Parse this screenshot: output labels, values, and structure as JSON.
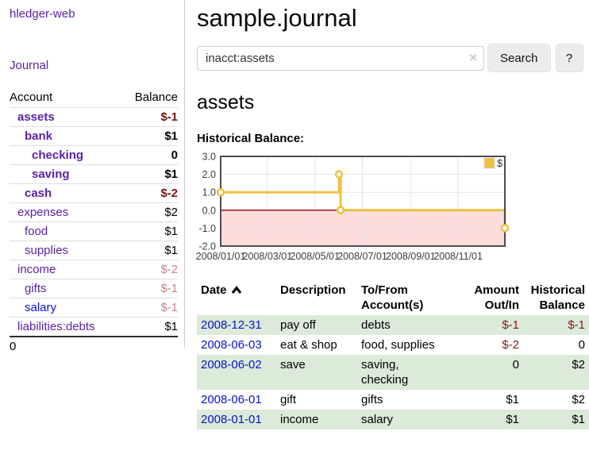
{
  "colors": {
    "accent_purple": "#5b21a6",
    "link_blue": "#0712cf",
    "negative_strong": "#7c1212",
    "negative_muted": "#c08585",
    "negative_table": "#8b1a1a",
    "row_green": "#dcead9"
  },
  "sidebar": {
    "app_title": "hledger-web",
    "journal_link": "Journal",
    "accounts_table": {
      "col_account": "Account",
      "col_balance": "Balance",
      "rows": [
        {
          "account": "assets",
          "level": 1,
          "bold": true,
          "balance": "$-1",
          "balance_class": "neg"
        },
        {
          "account": "bank",
          "level": 2,
          "bold": true,
          "balance": "$1",
          "balance_class": ""
        },
        {
          "account": "checking",
          "level": 3,
          "bold": true,
          "balance": "0",
          "balance_class": ""
        },
        {
          "account": "saving",
          "level": 3,
          "bold": true,
          "balance": "$1",
          "balance_class": ""
        },
        {
          "account": "cash",
          "level": 2,
          "bold": true,
          "balance": "$-2",
          "balance_class": "neg"
        },
        {
          "account": "expenses",
          "level": 1,
          "bold": false,
          "balance": "$2",
          "balance_class": ""
        },
        {
          "account": "food",
          "level": 2,
          "bold": false,
          "balance": "$1",
          "balance_class": ""
        },
        {
          "account": "supplies",
          "level": 2,
          "bold": false,
          "balance": "$1",
          "balance_class": ""
        },
        {
          "account": "income",
          "level": 1,
          "bold": false,
          "balance": "$-2",
          "balance_class": "negmuted"
        },
        {
          "account": "gifts",
          "level": 2,
          "bold": false,
          "balance": "$-1",
          "balance_class": "negmuted"
        },
        {
          "account": "salary",
          "level": 2,
          "bold": false,
          "balance": "$-1",
          "balance_class": "negmuted",
          "link_color": "#0712d8"
        },
        {
          "account": "liabilities:debts",
          "level": 1,
          "bold": false,
          "balance": "$1",
          "balance_class": ""
        }
      ],
      "total": "0"
    }
  },
  "main": {
    "title": "sample.journal",
    "search": {
      "value": "inacct:assets",
      "clear_icon": "×",
      "search_button": "Search",
      "help_button": "?"
    },
    "account_heading": "assets",
    "chart_title": "Historical Balance:",
    "register": {
      "col_date": "Date",
      "col_description": "Description",
      "col_tofrom": "To/From Account(s)",
      "col_amount": "Amount Out/In",
      "col_balance": "Historical Balance",
      "rows": [
        {
          "date": "2008-12-31",
          "description": "pay off",
          "tofrom": "debts",
          "amount": "$-1",
          "amount_class": "neg",
          "balance": "$-1",
          "balance_class": "neg"
        },
        {
          "date": "2008-06-03",
          "description": "eat & shop",
          "tofrom": "food, supplies",
          "amount": "$-2",
          "amount_class": "neg",
          "balance": "0",
          "balance_class": ""
        },
        {
          "date": "2008-06-02",
          "description": "save",
          "tofrom": "saving,\nchecking",
          "amount": "0",
          "amount_class": "",
          "balance": "$2",
          "balance_class": ""
        },
        {
          "date": "2008-06-01",
          "description": "gift",
          "tofrom": "gifts",
          "amount": "$1",
          "amount_class": "",
          "balance": "$2",
          "balance_class": ""
        },
        {
          "date": "2008-01-01",
          "description": "income",
          "tofrom": "salary",
          "amount": "$1",
          "amount_class": "",
          "balance": "$1",
          "balance_class": ""
        }
      ]
    }
  },
  "chart_data": {
    "type": "line",
    "title": "Historical Balance:",
    "x_type": "date",
    "xlim": [
      "2008/01/01",
      "2008/12/31"
    ],
    "ylim": [
      -2,
      3
    ],
    "xticks": [
      "2008/01/01",
      "2008/03/01",
      "2008/05/01",
      "2008/07/01",
      "2008/09/01",
      "2008/11/01"
    ],
    "ytick_labels": [
      "3.0",
      "2.0",
      "1.0",
      "0.0",
      "-1.0",
      "-2.0"
    ],
    "ytick_values": [
      3,
      2,
      1,
      0,
      -1,
      -2
    ],
    "legend": {
      "label": "$",
      "position": "top-right"
    },
    "series": [
      {
        "name": "$",
        "style": "step-line-with-markers",
        "color": "#edc240",
        "points": [
          [
            "2008/01/01",
            1
          ],
          [
            "2008/06/01",
            2
          ],
          [
            "2008/06/03",
            0
          ],
          [
            "2008/12/31",
            -1
          ]
        ]
      }
    ],
    "grid": true,
    "styles": {
      "negative_region_fill": "#ffdcdc",
      "zero_line": "#8b0000",
      "grid_line": "#e4e4e4",
      "plot_border": "#4d4d4d",
      "marker_fill": "#ffffff",
      "axis_text": "#3c3c3c"
    }
  }
}
